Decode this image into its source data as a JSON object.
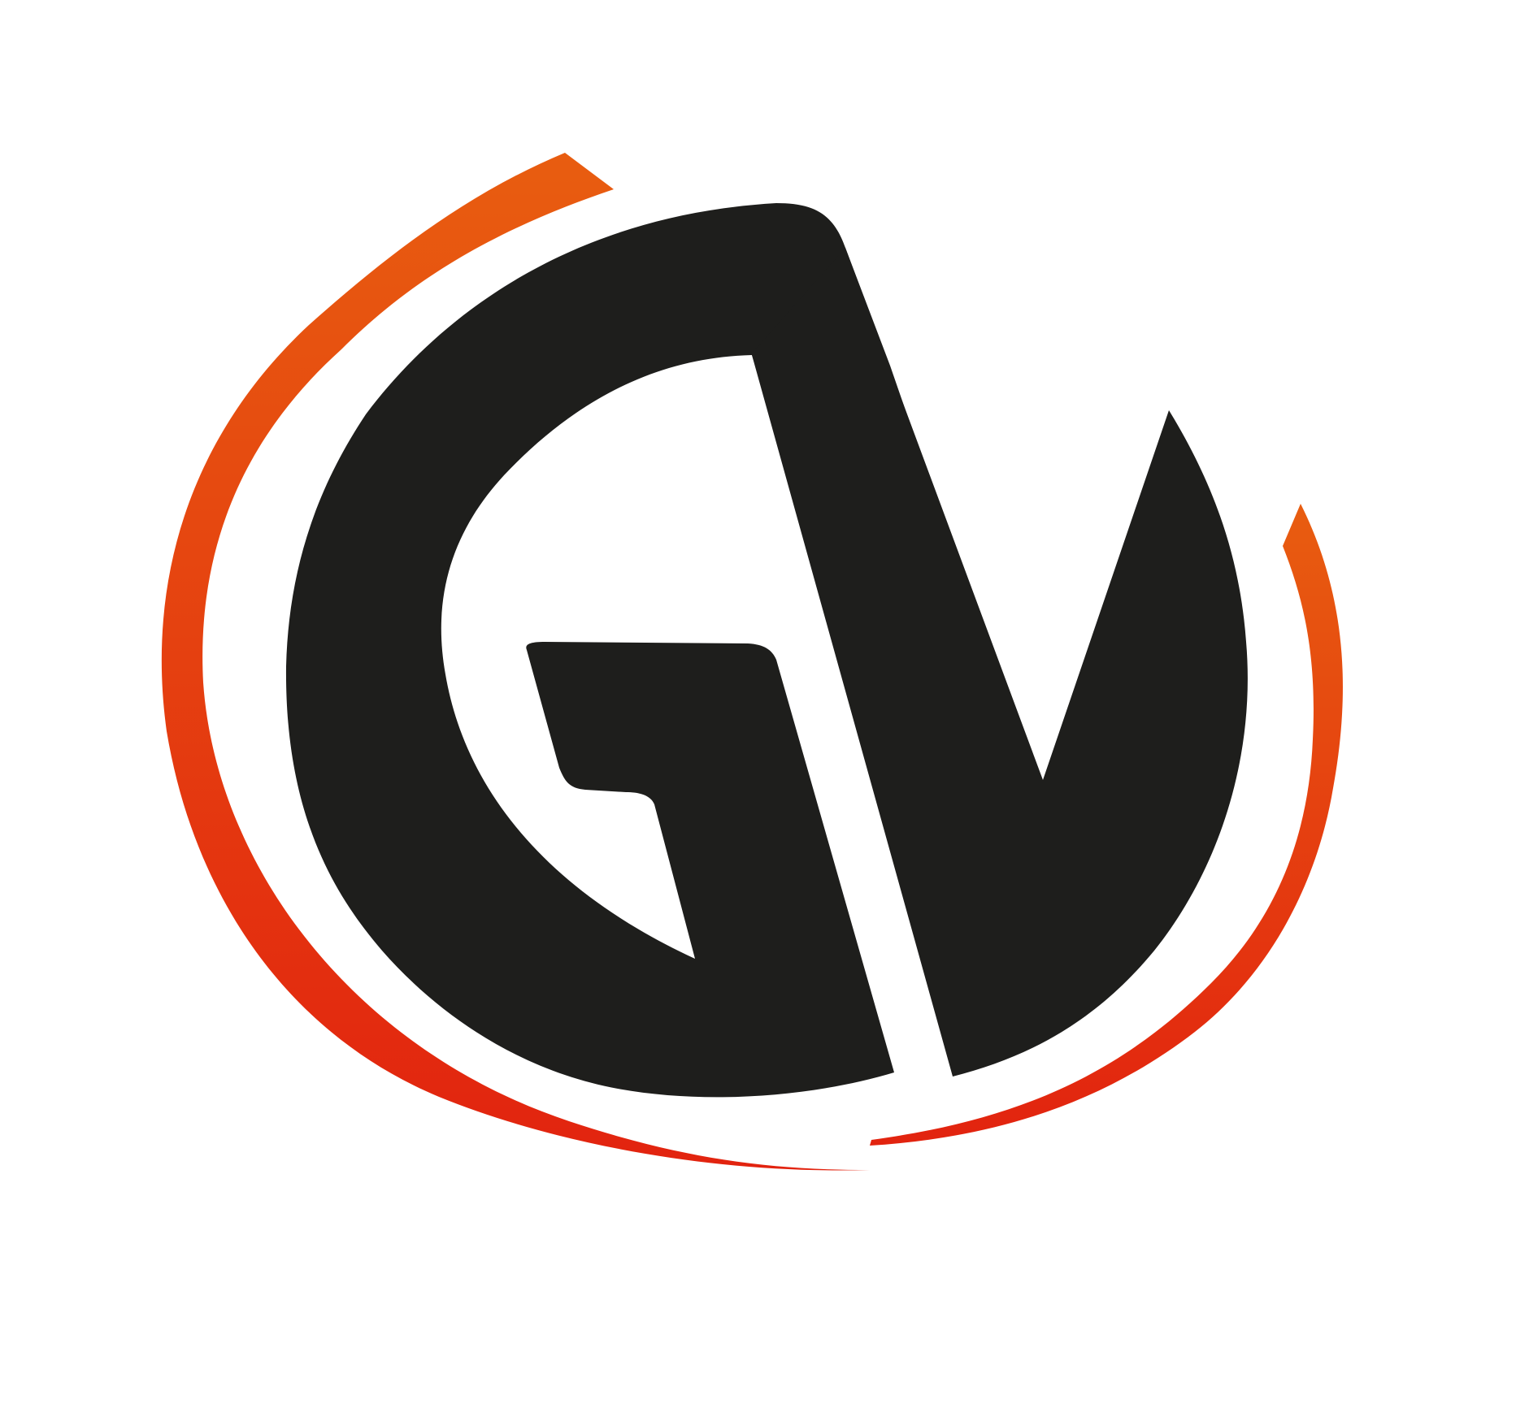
{
  "logo": {
    "monogram": "GV",
    "colors": {
      "background": "#ffffff",
      "letters": "#1e1e1c",
      "swoosh_top": "#e85d10",
      "swoosh_bottom": "#e2230f"
    }
  }
}
